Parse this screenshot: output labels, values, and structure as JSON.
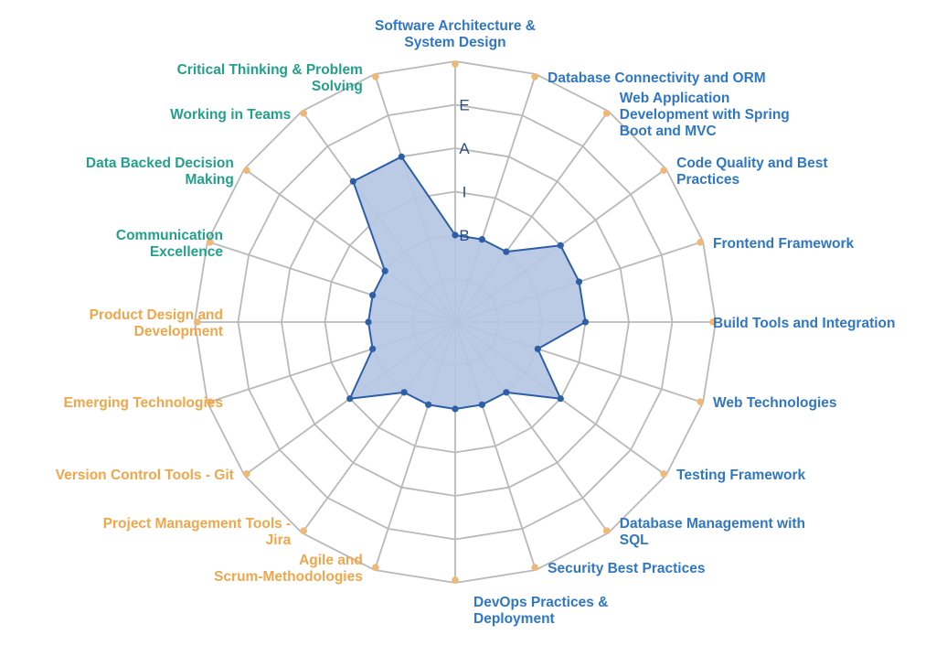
{
  "colors": {
    "tech": "#2f77c4",
    "soft": "#23a08a",
    "product": "#f0a64a",
    "grid": "#b9b9b9",
    "tip": "#f0b878",
    "fill": "#b5c7e4",
    "stroke": "#2c5fa8",
    "level": "#2a4d85"
  },
  "chart_data": {
    "type": "radar",
    "title": "",
    "levels": [
      "B",
      "I",
      "A",
      "E"
    ],
    "rmax": 5,
    "rings": 6,
    "axes": [
      {
        "label": "Software Architecture &\nSystem Design",
        "value": 2,
        "group": "tech"
      },
      {
        "label": "Database Connectivity and ORM",
        "value": 2,
        "group": "tech"
      },
      {
        "label": "Web Application\nDevelopment with Spring\nBoot and MVC",
        "value": 2,
        "group": "tech"
      },
      {
        "label": "Code Quality and Best\nPractices",
        "value": 3,
        "group": "tech"
      },
      {
        "label": "Frontend Framework",
        "value": 3,
        "group": "tech"
      },
      {
        "label": "Build Tools and Integration",
        "value": 3,
        "group": "tech"
      },
      {
        "label": "Web Technologies",
        "value": 2,
        "group": "tech"
      },
      {
        "label": "Testing Framework",
        "value": 3,
        "group": "tech"
      },
      {
        "label": "Database Management with\nSQL",
        "value": 2,
        "group": "tech"
      },
      {
        "label": "Security Best Practices",
        "value": 2,
        "group": "tech"
      },
      {
        "label": "DevOps Practices &\nDeployment",
        "value": 2,
        "group": "tech"
      },
      {
        "label": "Agile and\nScrum-Methodologies",
        "value": 2,
        "group": "product"
      },
      {
        "label": "Project Management Tools -\nJira",
        "value": 2,
        "group": "product"
      },
      {
        "label": "Version Control Tools - Git",
        "value": 3,
        "group": "product"
      },
      {
        "label": "Emerging Technologies",
        "value": 2,
        "group": "product"
      },
      {
        "label": "Product Design and\nDevelopment",
        "value": 2,
        "group": "product"
      },
      {
        "label": "Communication\nExcellence",
        "value": 2,
        "group": "soft"
      },
      {
        "label": "Data Backed Decision\nMaking",
        "value": 2,
        "group": "soft"
      },
      {
        "label": "Working in Teams",
        "value": 4,
        "group": "soft"
      },
      {
        "label": "Critical Thinking & Problem\nSolving",
        "value": 4,
        "group": "soft"
      }
    ]
  }
}
